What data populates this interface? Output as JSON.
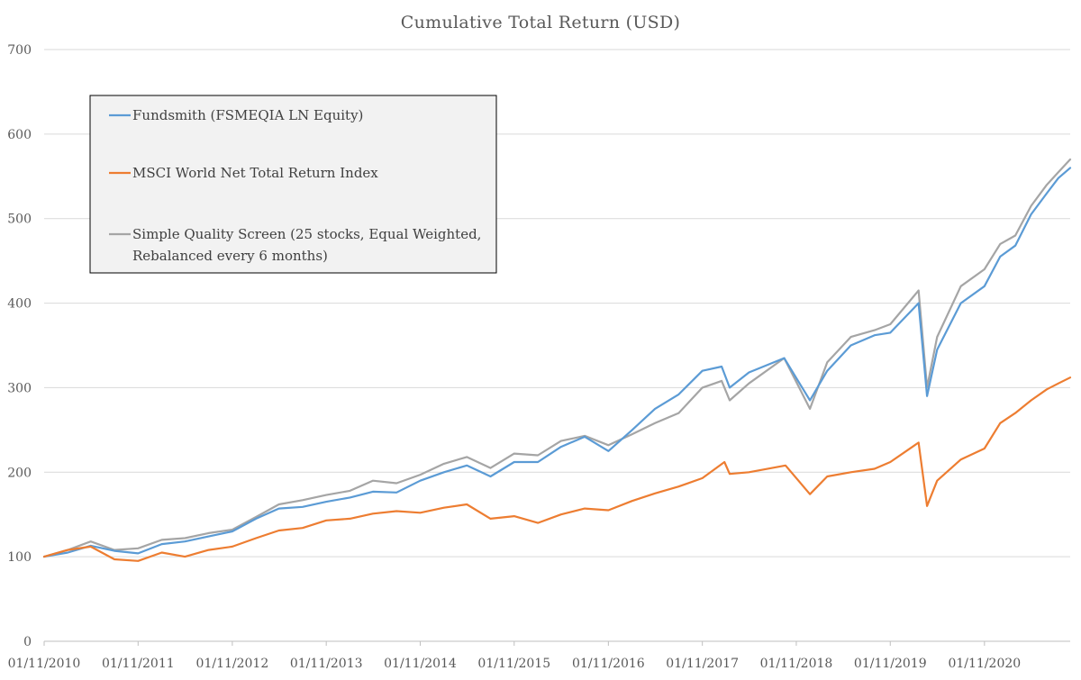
{
  "chart_data": {
    "type": "line",
    "title": "Cumulative Total Return (USD)",
    "xlabel": "",
    "ylabel": "",
    "ylim": [
      0,
      700
    ],
    "yticks": [
      0,
      100,
      200,
      300,
      400,
      500,
      600,
      700
    ],
    "xlim": [
      "2010-11-01",
      "2021-09-30"
    ],
    "xticks": [
      "01/11/2010",
      "01/11/2011",
      "01/11/2012",
      "01/11/2013",
      "01/11/2014",
      "01/11/2015",
      "01/11/2016",
      "01/11/2017",
      "01/11/2018",
      "01/11/2019",
      "01/11/2020"
    ],
    "grid": "horizontal",
    "legend_position": "upper-left",
    "series": [
      {
        "name": "Fundsmith (FSMEQIA LN Equity)",
        "color": "#5b9bd5",
        "points": [
          [
            "2010-11-01",
            100
          ],
          [
            "2011-02-01",
            105
          ],
          [
            "2011-05-01",
            113
          ],
          [
            "2011-08-01",
            107
          ],
          [
            "2011-11-01",
            104
          ],
          [
            "2012-02-01",
            115
          ],
          [
            "2012-05-01",
            118
          ],
          [
            "2012-08-01",
            124
          ],
          [
            "2012-11-01",
            130
          ],
          [
            "2013-02-01",
            145
          ],
          [
            "2013-05-01",
            157
          ],
          [
            "2013-08-01",
            159
          ],
          [
            "2013-11-01",
            165
          ],
          [
            "2014-02-01",
            170
          ],
          [
            "2014-05-01",
            177
          ],
          [
            "2014-08-01",
            176
          ],
          [
            "2014-11-01",
            190
          ],
          [
            "2015-02-01",
            200
          ],
          [
            "2015-05-01",
            208
          ],
          [
            "2015-08-01",
            195
          ],
          [
            "2015-11-01",
            212
          ],
          [
            "2016-02-01",
            212
          ],
          [
            "2016-05-01",
            230
          ],
          [
            "2016-08-01",
            242
          ],
          [
            "2016-11-01",
            225
          ],
          [
            "2017-02-01",
            250
          ],
          [
            "2017-05-01",
            275
          ],
          [
            "2017-08-01",
            292
          ],
          [
            "2017-11-01",
            320
          ],
          [
            "2018-01-15",
            325
          ],
          [
            "2018-02-15",
            300
          ],
          [
            "2018-05-01",
            318
          ],
          [
            "2018-09-15",
            335
          ],
          [
            "2018-12-24",
            285
          ],
          [
            "2019-03-01",
            320
          ],
          [
            "2019-06-01",
            350
          ],
          [
            "2019-09-01",
            362
          ],
          [
            "2019-11-01",
            365
          ],
          [
            "2020-02-19",
            400
          ],
          [
            "2020-03-23",
            290
          ],
          [
            "2020-05-01",
            345
          ],
          [
            "2020-08-01",
            400
          ],
          [
            "2020-11-01",
            420
          ],
          [
            "2021-01-01",
            455
          ],
          [
            "2021-03-01",
            468
          ],
          [
            "2021-05-01",
            505
          ],
          [
            "2021-07-01",
            530
          ],
          [
            "2021-08-15",
            548
          ],
          [
            "2021-09-30",
            560
          ]
        ]
      },
      {
        "name": "MSCI World Net Total Return Index",
        "color": "#ed7d31",
        "points": [
          [
            "2010-11-01",
            100
          ],
          [
            "2011-02-01",
            108
          ],
          [
            "2011-05-01",
            112
          ],
          [
            "2011-08-01",
            97
          ],
          [
            "2011-11-01",
            95
          ],
          [
            "2012-02-01",
            105
          ],
          [
            "2012-05-01",
            100
          ],
          [
            "2012-08-01",
            108
          ],
          [
            "2012-11-01",
            112
          ],
          [
            "2013-02-01",
            122
          ],
          [
            "2013-05-01",
            131
          ],
          [
            "2013-08-01",
            134
          ],
          [
            "2013-11-01",
            143
          ],
          [
            "2014-02-01",
            145
          ],
          [
            "2014-05-01",
            151
          ],
          [
            "2014-08-01",
            154
          ],
          [
            "2014-11-01",
            152
          ],
          [
            "2015-02-01",
            158
          ],
          [
            "2015-05-01",
            162
          ],
          [
            "2015-08-01",
            145
          ],
          [
            "2015-11-01",
            148
          ],
          [
            "2016-02-01",
            140
          ],
          [
            "2016-05-01",
            150
          ],
          [
            "2016-08-01",
            157
          ],
          [
            "2016-11-01",
            155
          ],
          [
            "2017-02-01",
            166
          ],
          [
            "2017-05-01",
            175
          ],
          [
            "2017-08-01",
            183
          ],
          [
            "2017-11-01",
            193
          ],
          [
            "2018-01-26",
            212
          ],
          [
            "2018-02-15",
            198
          ],
          [
            "2018-05-01",
            200
          ],
          [
            "2018-09-20",
            208
          ],
          [
            "2018-12-24",
            174
          ],
          [
            "2019-03-01",
            195
          ],
          [
            "2019-06-01",
            200
          ],
          [
            "2019-09-01",
            204
          ],
          [
            "2019-11-01",
            212
          ],
          [
            "2020-02-19",
            235
          ],
          [
            "2020-03-23",
            160
          ],
          [
            "2020-05-01",
            190
          ],
          [
            "2020-08-01",
            215
          ],
          [
            "2020-11-01",
            228
          ],
          [
            "2021-01-01",
            258
          ],
          [
            "2021-03-01",
            270
          ],
          [
            "2021-05-01",
            285
          ],
          [
            "2021-07-01",
            298
          ],
          [
            "2021-08-15",
            305
          ],
          [
            "2021-09-30",
            312
          ]
        ]
      },
      {
        "name": "Simple Quality Screen (25 stocks, Equal Weighted, Rebalanced every 6 months)",
        "color": "#a5a5a5",
        "points": [
          [
            "2010-11-01",
            100
          ],
          [
            "2011-02-01",
            108
          ],
          [
            "2011-05-01",
            118
          ],
          [
            "2011-08-01",
            108
          ],
          [
            "2011-11-01",
            110
          ],
          [
            "2012-02-01",
            120
          ],
          [
            "2012-05-01",
            122
          ],
          [
            "2012-08-01",
            128
          ],
          [
            "2012-11-01",
            132
          ],
          [
            "2013-02-01",
            147
          ],
          [
            "2013-05-01",
            162
          ],
          [
            "2013-08-01",
            167
          ],
          [
            "2013-11-01",
            173
          ],
          [
            "2014-02-01",
            178
          ],
          [
            "2014-05-01",
            190
          ],
          [
            "2014-08-01",
            187
          ],
          [
            "2014-11-01",
            197
          ],
          [
            "2015-02-01",
            210
          ],
          [
            "2015-05-01",
            218
          ],
          [
            "2015-08-01",
            205
          ],
          [
            "2015-11-01",
            222
          ],
          [
            "2016-02-01",
            220
          ],
          [
            "2016-05-01",
            237
          ],
          [
            "2016-08-01",
            243
          ],
          [
            "2016-11-01",
            232
          ],
          [
            "2017-02-01",
            245
          ],
          [
            "2017-05-01",
            258
          ],
          [
            "2017-08-01",
            270
          ],
          [
            "2017-11-01",
            300
          ],
          [
            "2018-01-15",
            308
          ],
          [
            "2018-02-15",
            285
          ],
          [
            "2018-05-01",
            305
          ],
          [
            "2018-09-15",
            335
          ],
          [
            "2018-12-24",
            275
          ],
          [
            "2019-03-01",
            330
          ],
          [
            "2019-06-01",
            360
          ],
          [
            "2019-09-01",
            368
          ],
          [
            "2019-11-01",
            375
          ],
          [
            "2020-02-19",
            415
          ],
          [
            "2020-03-23",
            300
          ],
          [
            "2020-05-01",
            360
          ],
          [
            "2020-08-01",
            420
          ],
          [
            "2020-11-01",
            440
          ],
          [
            "2021-01-01",
            470
          ],
          [
            "2021-03-01",
            480
          ],
          [
            "2021-05-01",
            515
          ],
          [
            "2021-07-01",
            540
          ],
          [
            "2021-08-15",
            555
          ],
          [
            "2021-09-30",
            570
          ]
        ]
      }
    ]
  }
}
